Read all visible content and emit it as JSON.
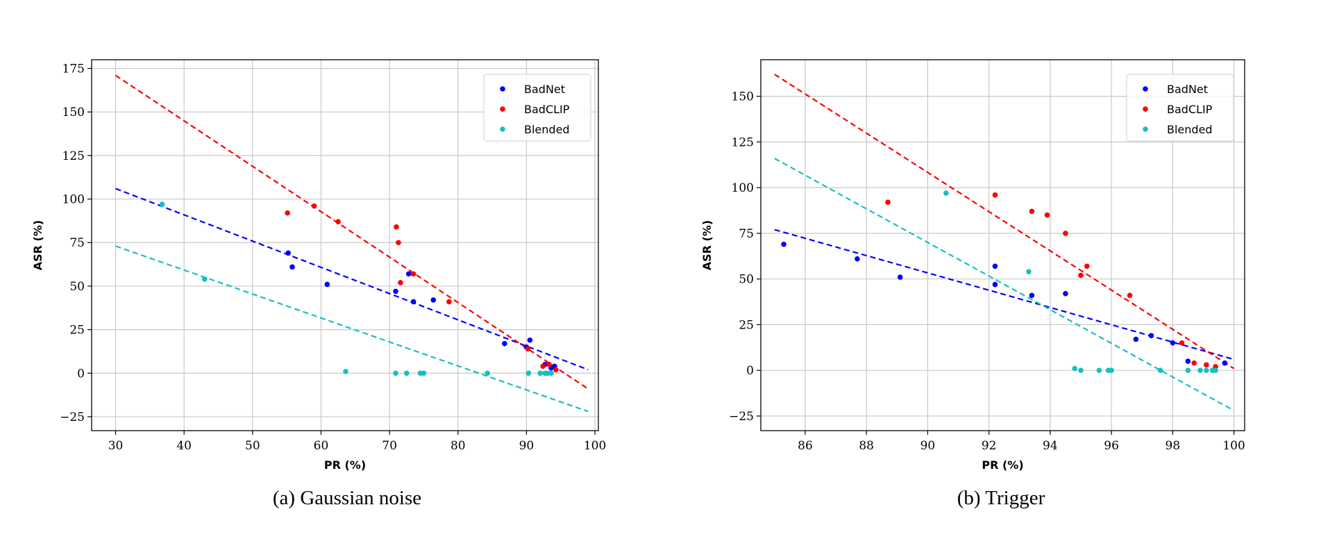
{
  "chart_data": [
    {
      "type": "scatter",
      "caption": "(a) Gaussian noise",
      "xlabel": "PR (%)",
      "ylabel": "ASR (%)",
      "xlim": [
        26.5,
        100.5
      ],
      "ylim": [
        -33,
        180
      ],
      "xticks": [
        30,
        40,
        50,
        60,
        70,
        80,
        90,
        100
      ],
      "yticks": [
        -25,
        0,
        25,
        50,
        75,
        100,
        125,
        150,
        175
      ],
      "xtick_labels": [
        "30",
        "40",
        "50",
        "60",
        "70",
        "80",
        "90",
        "100"
      ],
      "ytick_labels": [
        "−25",
        "0",
        "25",
        "50",
        "75",
        "100",
        "125",
        "150",
        "175"
      ],
      "grid": true,
      "legend_position": "top-right",
      "series": [
        {
          "name": "BadNet",
          "color": "#0000ff",
          "points": [
            [
              55.2,
              69
            ],
            [
              55.8,
              61
            ],
            [
              60.9,
              51
            ],
            [
              70.9,
              47
            ],
            [
              72.8,
              57
            ],
            [
              73.5,
              41
            ],
            [
              76.4,
              42
            ],
            [
              86.8,
              17
            ],
            [
              90,
              15
            ],
            [
              90.5,
              19
            ],
            [
              92.7,
              5
            ],
            [
              93.6,
              3
            ],
            [
              94.1,
              4
            ]
          ],
          "fit": [
            [
              30,
              106
            ],
            [
              99,
              2
            ]
          ]
        },
        {
          "name": "BadCLIP",
          "color": "#ff0000",
          "points": [
            [
              55.1,
              92
            ],
            [
              59,
              96
            ],
            [
              62.5,
              87
            ],
            [
              71,
              84
            ],
            [
              71.3,
              75
            ],
            [
              71.6,
              52
            ],
            [
              73.5,
              57
            ],
            [
              78.7,
              41
            ],
            [
              90.2,
              14
            ],
            [
              92.4,
              4
            ],
            [
              93.3,
              5
            ],
            [
              94.3,
              2
            ]
          ],
          "fit": [
            [
              30,
              171
            ],
            [
              99,
              -9
            ]
          ]
        },
        {
          "name": "Blended",
          "color": "#17bfbf",
          "points": [
            [
              36.8,
              97
            ],
            [
              43,
              54
            ],
            [
              63.6,
              1
            ],
            [
              70.9,
              0
            ],
            [
              72.5,
              0
            ],
            [
              74.5,
              0
            ],
            [
              75,
              0
            ],
            [
              84.3,
              0
            ],
            [
              90.3,
              0
            ],
            [
              92,
              0
            ],
            [
              92.7,
              0
            ],
            [
              93.1,
              0
            ],
            [
              93.6,
              0
            ]
          ],
          "fit": [
            [
              30,
              73
            ],
            [
              99,
              -22
            ]
          ]
        }
      ]
    },
    {
      "type": "scatter",
      "caption": "(b) Trigger",
      "xlabel": "PR (%)",
      "ylabel": "ASR (%)",
      "xlim": [
        84.55,
        100.35
      ],
      "ylim": [
        -33,
        170
      ],
      "xticks": [
        86,
        88,
        90,
        92,
        94,
        96,
        98,
        100
      ],
      "yticks": [
        -25,
        0,
        25,
        50,
        75,
        100,
        125,
        150
      ],
      "xtick_labels": [
        "86",
        "88",
        "90",
        "92",
        "94",
        "96",
        "98",
        "100"
      ],
      "ytick_labels": [
        "−25",
        "0",
        "25",
        "50",
        "75",
        "100",
        "125",
        "150"
      ],
      "grid": true,
      "legend_position": "top-right",
      "series": [
        {
          "name": "BadNet",
          "color": "#0000ff",
          "points": [
            [
              85.3,
              69
            ],
            [
              87.7,
              61
            ],
            [
              89.1,
              51
            ],
            [
              92.2,
              57
            ],
            [
              92.2,
              47
            ],
            [
              93.4,
              41
            ],
            [
              94.5,
              42
            ],
            [
              96.8,
              17
            ],
            [
              97.3,
              19
            ],
            [
              98,
              15
            ],
            [
              98.5,
              5
            ],
            [
              99.7,
              4
            ]
          ],
          "fit": [
            [
              85,
              77
            ],
            [
              100,
              6
            ]
          ]
        },
        {
          "name": "BadCLIP",
          "color": "#ff0000",
          "points": [
            [
              88.7,
              92
            ],
            [
              92.2,
              96
            ],
            [
              93.4,
              87
            ],
            [
              93.9,
              85
            ],
            [
              94.5,
              75
            ],
            [
              95,
              52
            ],
            [
              95.2,
              57
            ],
            [
              96.6,
              41
            ],
            [
              98.3,
              15
            ],
            [
              98.7,
              4
            ],
            [
              99.1,
              3
            ],
            [
              99.4,
              2
            ]
          ],
          "fit": [
            [
              85,
              162
            ],
            [
              100,
              1
            ]
          ]
        },
        {
          "name": "Blended",
          "color": "#17bfbf",
          "points": [
            [
              90.6,
              97
            ],
            [
              93.3,
              54
            ],
            [
              94.8,
              1
            ],
            [
              95,
              0
            ],
            [
              95.6,
              0
            ],
            [
              95.9,
              0
            ],
            [
              96,
              0
            ],
            [
              97.6,
              0
            ],
            [
              98.5,
              0
            ],
            [
              98.9,
              0
            ],
            [
              99.1,
              0
            ],
            [
              99.3,
              0
            ],
            [
              99.4,
              0
            ]
          ],
          "fit": [
            [
              85,
              116
            ],
            [
              100,
              -22
            ]
          ]
        }
      ]
    }
  ]
}
